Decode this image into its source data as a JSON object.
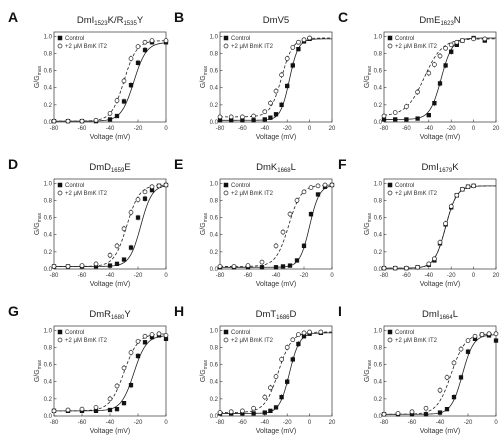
{
  "figure": {
    "legend": {
      "control": "Control",
      "toxin": "+2 μM BmK IT2"
    },
    "common_ylabel_main": "G/G",
    "common_ylabel_sub": "max",
    "common_xlabel": "Voltage (mV)"
  },
  "chart_data": [
    {
      "panel": "A",
      "type": "scatter",
      "title_parts": [
        {
          "t": "DmI"
        },
        {
          "t": "1523",
          "sub": true
        },
        {
          "t": "K/R"
        },
        {
          "t": "1535",
          "sub": true
        },
        {
          "t": "Y"
        }
      ],
      "xlim": [
        -80,
        0
      ],
      "ylim": [
        0,
        1.05
      ],
      "xticks": [
        -80,
        -60,
        -40,
        -20,
        0
      ],
      "yticks": [
        0.0,
        0.2,
        0.4,
        0.6,
        0.8,
        1.0
      ],
      "xlabel": "Voltage (mV)",
      "ylabel": "G/Gmax",
      "series": [
        {
          "name": "Control",
          "style": "filled-square",
          "vhalf": -23,
          "k": 4.5,
          "x": [
            -80,
            -70,
            -60,
            -50,
            -40,
            -35,
            -30,
            -25,
            -20,
            -15,
            -10,
            0
          ],
          "y": [
            0.01,
            0.01,
            0.01,
            0.01,
            0.03,
            0.07,
            0.24,
            0.43,
            0.69,
            0.84,
            0.93,
            0.93
          ]
        },
        {
          "name": "+2 μM BmK IT2",
          "style": "open-circle",
          "vhalf": -30,
          "k": 4.5,
          "x": [
            -80,
            -70,
            -60,
            -50,
            -40,
            -35,
            -30,
            -25,
            -20,
            -15,
            -10,
            0
          ],
          "y": [
            0.01,
            0.01,
            0.01,
            0.02,
            0.1,
            0.25,
            0.48,
            0.74,
            0.88,
            0.93,
            0.95,
            0.95
          ]
        }
      ]
    },
    {
      "panel": "B",
      "type": "scatter",
      "title_parts": [
        {
          "t": "DmV5"
        }
      ],
      "xlim": [
        -80,
        20
      ],
      "ylim": [
        0,
        1.05
      ],
      "xticks": [
        -80,
        -60,
        -40,
        -20,
        0,
        20
      ],
      "yticks": [
        0.0,
        0.2,
        0.4,
        0.6,
        0.8,
        1.0
      ],
      "xlabel": "Voltage (mV)",
      "ylabel": "G/Gmax",
      "series": [
        {
          "name": "Control",
          "style": "filled-square",
          "vhalf": -18,
          "k": 4.0,
          "x": [
            -80,
            -70,
            -60,
            -50,
            -40,
            -35,
            -30,
            -25,
            -20,
            -15,
            -10,
            -5,
            0
          ],
          "y": [
            0.02,
            0.02,
            0.02,
            0.02,
            0.03,
            0.05,
            0.09,
            0.2,
            0.42,
            0.66,
            0.85,
            0.94,
            0.97
          ]
        },
        {
          "name": "+2 μM BmK IT2",
          "style": "open-circle",
          "vhalf": -25,
          "k": 5.0,
          "x": [
            -80,
            -70,
            -60,
            -50,
            -40,
            -35,
            -30,
            -25,
            -20,
            -15,
            -10,
            -5,
            0
          ],
          "y": [
            0.06,
            0.06,
            0.06,
            0.07,
            0.12,
            0.22,
            0.36,
            0.55,
            0.74,
            0.87,
            0.93,
            0.96,
            0.98
          ]
        }
      ]
    },
    {
      "panel": "C",
      "type": "scatter",
      "title_parts": [
        {
          "t": "DmE"
        },
        {
          "t": "1623",
          "sub": true
        },
        {
          "t": "N"
        }
      ],
      "xlim": [
        -80,
        20
      ],
      "ylim": [
        0,
        1.05
      ],
      "xticks": [
        -80,
        -60,
        -40,
        -20,
        0,
        20
      ],
      "yticks": [
        0.0,
        0.2,
        0.4,
        0.6,
        0.8,
        1.0
      ],
      "xlabel": "Voltage (mV)",
      "ylabel": "G/Gmax",
      "series": [
        {
          "name": "Control",
          "style": "filled-square",
          "vhalf": -29,
          "k": 5.0,
          "x": [
            -80,
            -70,
            -60,
            -50,
            -40,
            -35,
            -30,
            -25,
            -20,
            -15,
            -10,
            0,
            10
          ],
          "y": [
            0.03,
            0.03,
            0.03,
            0.04,
            0.08,
            0.22,
            0.45,
            0.66,
            0.82,
            0.9,
            0.95,
            0.98,
            0.95
          ]
        },
        {
          "name": "+2 μM BmK IT2",
          "style": "open-circle",
          "vhalf": -44,
          "k": 8.0,
          "x": [
            -80,
            -70,
            -60,
            -50,
            -40,
            -35,
            -30,
            -25,
            -20,
            -15,
            -10,
            0,
            10
          ],
          "y": [
            0.07,
            0.11,
            0.18,
            0.35,
            0.57,
            0.67,
            0.77,
            0.86,
            0.9,
            0.93,
            0.95,
            0.97,
            0.97
          ]
        }
      ]
    },
    {
      "panel": "D",
      "type": "scatter",
      "title_parts": [
        {
          "t": "DmD"
        },
        {
          "t": "1659",
          "sub": true
        },
        {
          "t": "E"
        }
      ],
      "xlim": [
        -80,
        0
      ],
      "ylim": [
        0,
        1.05
      ],
      "xticks": [
        -80,
        -60,
        -40,
        -20,
        0
      ],
      "yticks": [
        0.0,
        0.2,
        0.4,
        0.6,
        0.8,
        1.0
      ],
      "xlabel": "Voltage (mV)",
      "ylabel": "G/Gmax",
      "series": [
        {
          "name": "Control",
          "style": "filled-square",
          "vhalf": -18,
          "k": 4.0,
          "x": [
            -80,
            -70,
            -60,
            -50,
            -40,
            -35,
            -30,
            -25,
            -20,
            -15,
            -10,
            -5,
            0
          ],
          "y": [
            0.03,
            0.03,
            0.03,
            0.03,
            0.04,
            0.06,
            0.11,
            0.25,
            0.6,
            0.82,
            0.92,
            0.97,
            0.98
          ]
        },
        {
          "name": "+2 μM BmK IT2",
          "style": "open-circle",
          "vhalf": -28,
          "k": 4.5,
          "x": [
            -80,
            -70,
            -60,
            -50,
            -40,
            -35,
            -30,
            -25,
            -20,
            -15,
            -10,
            -5,
            0
          ],
          "y": [
            0.03,
            0.03,
            0.04,
            0.06,
            0.16,
            0.27,
            0.47,
            0.66,
            0.81,
            0.9,
            0.96,
            0.97,
            0.98
          ]
        }
      ]
    },
    {
      "panel": "E",
      "type": "scatter",
      "title_parts": [
        {
          "t": "DmK"
        },
        {
          "t": "1668",
          "sub": true
        },
        {
          "t": "L"
        }
      ],
      "xlim": [
        -80,
        0
      ],
      "ylim": [
        0,
        1.05
      ],
      "xticks": [
        -80,
        -60,
        -40,
        -20,
        0
      ],
      "yticks": [
        0.0,
        0.2,
        0.4,
        0.6,
        0.8,
        1.0
      ],
      "xlabel": "Voltage (mV)",
      "ylabel": "G/Gmax",
      "series": [
        {
          "name": "Control",
          "style": "filled-square",
          "vhalf": -16,
          "k": 3.5,
          "x": [
            -80,
            -70,
            -60,
            -50,
            -40,
            -35,
            -30,
            -25,
            -20,
            -15,
            -10,
            -5,
            0
          ],
          "y": [
            0.02,
            0.02,
            0.02,
            0.02,
            0.02,
            0.03,
            0.04,
            0.1,
            0.27,
            0.64,
            0.87,
            0.96,
            0.98
          ]
        },
        {
          "name": "+2 μM BmK IT2",
          "style": "open-circle",
          "vhalf": -31,
          "k": 4.5,
          "x": [
            -80,
            -70,
            -60,
            -50,
            -40,
            -35,
            -30,
            -25,
            -20,
            -15,
            -10,
            -5,
            0
          ],
          "y": [
            0.03,
            0.03,
            0.04,
            0.08,
            0.27,
            0.43,
            0.64,
            0.8,
            0.9,
            0.95,
            0.97,
            0.98,
            0.98
          ]
        }
      ]
    },
    {
      "panel": "F",
      "type": "scatter",
      "title_parts": [
        {
          "t": "DmI"
        },
        {
          "t": "1679",
          "sub": true
        },
        {
          "t": "K"
        }
      ],
      "xlim": [
        -80,
        20
      ],
      "ylim": [
        0,
        1.05
      ],
      "xticks": [
        -80,
        -60,
        -40,
        -20,
        0,
        20
      ],
      "yticks": [
        0.0,
        0.2,
        0.4,
        0.6,
        0.8,
        1.0
      ],
      "xlabel": "Voltage (mV)",
      "ylabel": "G/Gmax",
      "series": [
        {
          "name": "Control",
          "style": "filled-square",
          "vhalf": -25,
          "k": 5.0,
          "x": [
            -80,
            -70,
            -60,
            -50,
            -40,
            -35,
            -30,
            -25,
            -20,
            -15,
            -10,
            -5,
            0
          ],
          "y": [
            0.01,
            0.01,
            0.01,
            0.02,
            0.05,
            0.1,
            0.3,
            0.52,
            0.72,
            0.86,
            0.93,
            0.96,
            0.97
          ]
        },
        {
          "name": "+2 μM BmK IT2",
          "style": "open-circle",
          "vhalf": -25,
          "k": 5.0,
          "x": [
            -80,
            -70,
            -60,
            -50,
            -40,
            -35,
            -30,
            -25,
            -20,
            -15,
            -10,
            -5,
            0
          ],
          "y": [
            0.01,
            0.01,
            0.01,
            0.02,
            0.06,
            0.12,
            0.31,
            0.53,
            0.73,
            0.86,
            0.93,
            0.96,
            0.97
          ]
        }
      ]
    },
    {
      "panel": "G",
      "type": "scatter",
      "title_parts": [
        {
          "t": "DmR"
        },
        {
          "t": "1680",
          "sub": true
        },
        {
          "t": "Y"
        }
      ],
      "xlim": [
        -80,
        0
      ],
      "ylim": [
        0,
        1.05
      ],
      "xticks": [
        -80,
        -60,
        -40,
        -20,
        0
      ],
      "yticks": [
        0.0,
        0.2,
        0.4,
        0.6,
        0.8,
        1.0
      ],
      "xlabel": "Voltage (mV)",
      "ylabel": "G/Gmax",
      "series": [
        {
          "name": "Control",
          "style": "filled-square",
          "vhalf": -23,
          "k": 4.5,
          "x": [
            -80,
            -70,
            -60,
            -50,
            -40,
            -35,
            -30,
            -25,
            -20,
            -15,
            -10,
            -5,
            0
          ],
          "y": [
            0.06,
            0.06,
            0.06,
            0.06,
            0.07,
            0.08,
            0.15,
            0.36,
            0.7,
            0.86,
            0.92,
            0.94,
            0.9
          ]
        },
        {
          "name": "+2 μM BmK IT2",
          "style": "open-circle",
          "vhalf": -30,
          "k": 5.0,
          "x": [
            -80,
            -70,
            -60,
            -50,
            -40,
            -35,
            -30,
            -25,
            -20,
            -15,
            -10,
            -5,
            0
          ],
          "y": [
            0.06,
            0.07,
            0.08,
            0.1,
            0.2,
            0.35,
            0.56,
            0.74,
            0.87,
            0.93,
            0.95,
            0.96,
            0.94
          ]
        }
      ]
    },
    {
      "panel": "H",
      "type": "scatter",
      "title_parts": [
        {
          "t": "DmT"
        },
        {
          "t": "1686",
          "sub": true
        },
        {
          "t": "D"
        }
      ],
      "xlim": [
        -80,
        20
      ],
      "ylim": [
        0,
        1.05
      ],
      "xticks": [
        -80,
        -60,
        -40,
        -20,
        0,
        20
      ],
      "yticks": [
        0.0,
        0.2,
        0.4,
        0.6,
        0.8,
        1.0
      ],
      "xlabel": "Voltage (mV)",
      "ylabel": "G/Gmax",
      "series": [
        {
          "name": "Control",
          "style": "filled-square",
          "vhalf": -18,
          "k": 4.5,
          "x": [
            -80,
            -70,
            -60,
            -50,
            -40,
            -35,
            -30,
            -25,
            -20,
            -15,
            -10,
            -5,
            0,
            10
          ],
          "y": [
            0.03,
            0.03,
            0.03,
            0.03,
            0.04,
            0.06,
            0.1,
            0.22,
            0.4,
            0.66,
            0.84,
            0.93,
            0.96,
            0.97
          ]
        },
        {
          "name": "+2 μM BmK IT2",
          "style": "open-circle",
          "vhalf": -28,
          "k": 6.0,
          "x": [
            -80,
            -70,
            -60,
            -50,
            -40,
            -35,
            -30,
            -25,
            -20,
            -15,
            -10,
            -5,
            0,
            10
          ],
          "y": [
            0.04,
            0.05,
            0.06,
            0.09,
            0.22,
            0.33,
            0.46,
            0.66,
            0.8,
            0.89,
            0.95,
            0.97,
            0.98,
            0.98
          ]
        }
      ]
    },
    {
      "panel": "I",
      "type": "scatter",
      "title_parts": [
        {
          "t": "DmI"
        },
        {
          "t": "1664",
          "sub": true
        },
        {
          "t": "L"
        }
      ],
      "xlim": [
        -80,
        0
      ],
      "ylim": [
        0,
        1.05
      ],
      "xticks": [
        -80,
        -60,
        -40,
        -20,
        0
      ],
      "yticks": [
        0.0,
        0.2,
        0.4,
        0.6,
        0.8,
        1.0
      ],
      "xlabel": "Voltage (mV)",
      "ylabel": "G/Gmax",
      "series": [
        {
          "name": "Control",
          "style": "filled-square",
          "vhalf": -24,
          "k": 4.0,
          "x": [
            -80,
            -70,
            -60,
            -50,
            -40,
            -35,
            -30,
            -25,
            -20,
            -15,
            -10,
            -5,
            0
          ],
          "y": [
            0.02,
            0.02,
            0.02,
            0.02,
            0.04,
            0.08,
            0.22,
            0.45,
            0.75,
            0.9,
            0.95,
            0.94,
            0.88
          ]
        },
        {
          "name": "+2 μM BmK IT2",
          "style": "open-circle",
          "vhalf": -32,
          "k": 5.0,
          "x": [
            -80,
            -70,
            -60,
            -50,
            -40,
            -35,
            -30,
            -25,
            -20,
            -15,
            -10,
            -5,
            0
          ],
          "y": [
            0.02,
            0.03,
            0.05,
            0.09,
            0.3,
            0.45,
            0.62,
            0.78,
            0.88,
            0.93,
            0.95,
            0.96,
            0.96
          ]
        }
      ]
    }
  ]
}
